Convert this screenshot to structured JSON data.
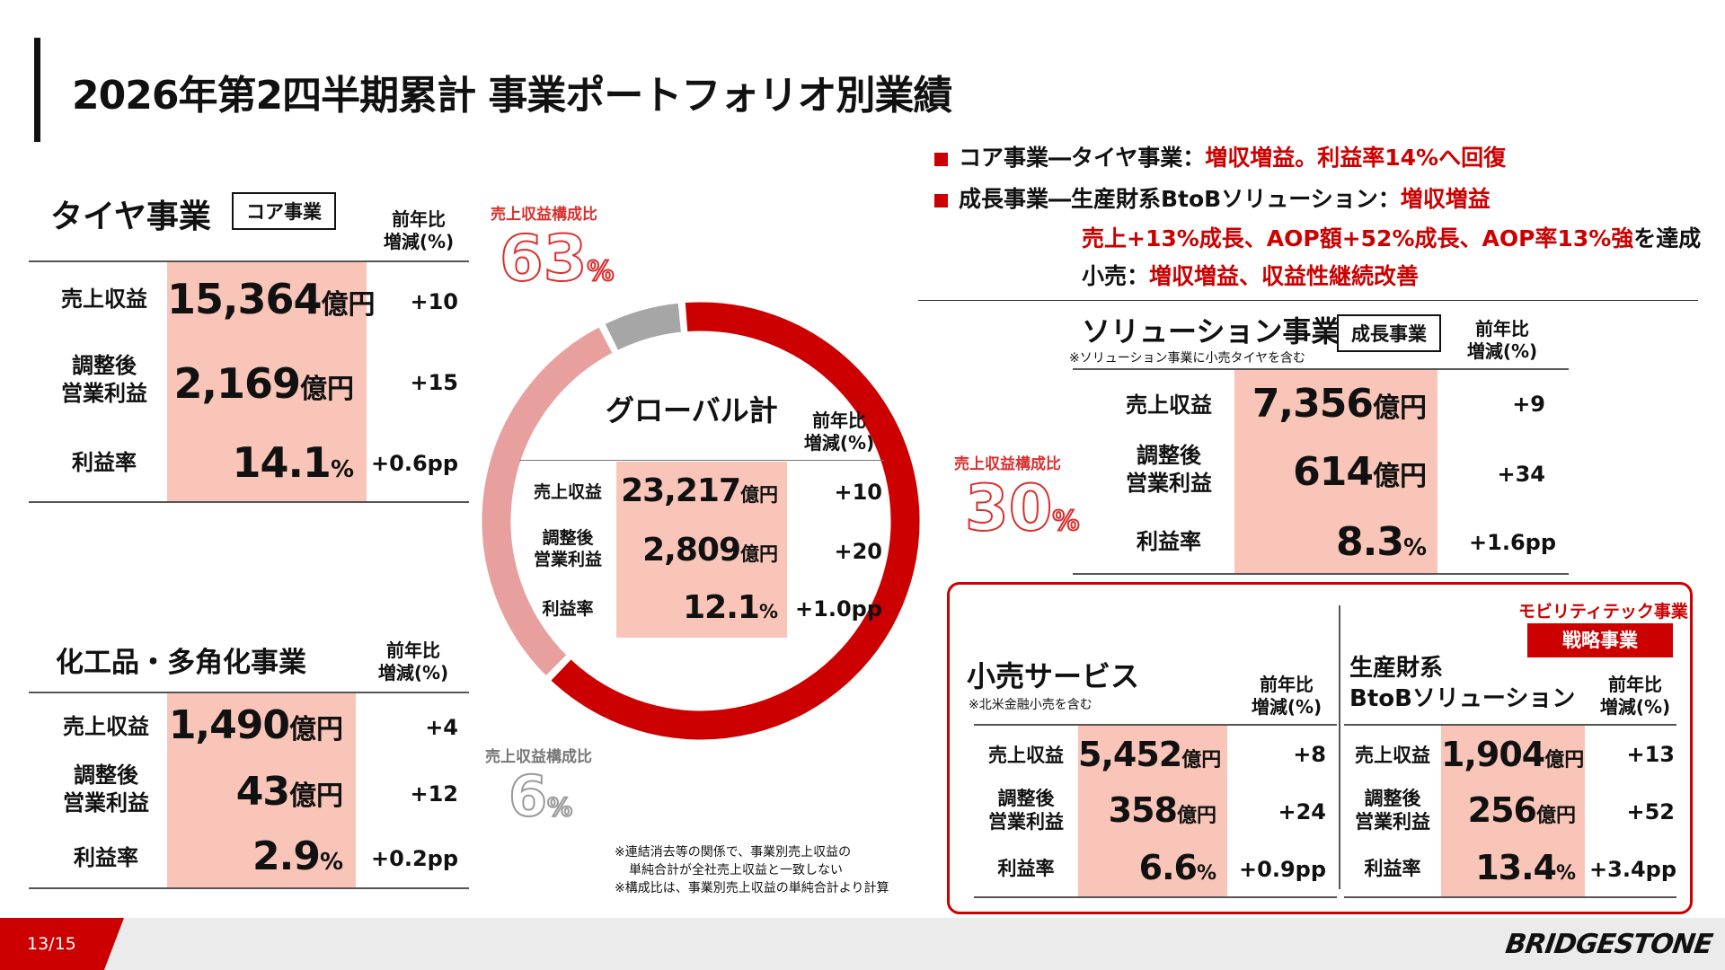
{
  "title": "2026年第2四半期累計 事業ポートフォリオ別業績",
  "bullets": [
    {
      "prefix": "コア事業―タイヤ事業：",
      "highlight": "増収増益。利益率14%へ回復"
    },
    {
      "prefix": "成長事業―生産財系BtoBソリューション：",
      "highlight": "増収増益"
    }
  ],
  "bullet_detail1_highlight": "売上+13%成長、AOP額+52%成長、AOP率13%強",
  "bullet_detail1_suffix": "を達成",
  "bullet_detail2_prefix": "小売：",
  "bullet_detail2_highlight": "増収増益、収益性継続改善",
  "yoy_label_1": "前年比",
  "yoy_label_2": "増減(%)",
  "row_labels": {
    "revenue": "売上収益",
    "aop_1": "調整後",
    "aop_2": "営業利益",
    "margin": "利益率"
  },
  "units": {
    "oku": "億円",
    "pct": "%"
  },
  "tire": {
    "title": "タイヤ事業",
    "badge": "コア事業",
    "revenue": "15,364",
    "revenue_chg": "+10",
    "aop": "2,169",
    "aop_chg": "+15",
    "margin": "14.1",
    "margin_chg": "+0.6pp"
  },
  "chem": {
    "title": "化工品・多角化事業",
    "revenue": "1,490",
    "revenue_chg": "+4",
    "aop": "43",
    "aop_chg": "+12",
    "margin": "2.9",
    "margin_chg": "+0.2pp"
  },
  "global": {
    "title": "グローバル計",
    "revenue": "23,217",
    "revenue_chg": "+10",
    "aop": "2,809",
    "aop_chg": "+20",
    "margin": "12.1",
    "margin_chg": "+1.0pp"
  },
  "solution": {
    "title": "ソリューション事業",
    "badge": "成長事業",
    "note": "※ソリューション事業に小売タイヤを含む",
    "revenue": "7,356",
    "revenue_chg": "+9",
    "aop": "614",
    "aop_chg": "+34",
    "margin": "8.3",
    "margin_chg": "+1.6pp"
  },
  "mobility_label": "モビリティテック事業",
  "strategic_badge": "戦略事業",
  "retail": {
    "title": "小売サービス",
    "note": "※北米金融小売を含む",
    "revenue": "5,452",
    "revenue_chg": "+8",
    "aop": "358",
    "aop_chg": "+24",
    "margin": "6.6",
    "margin_chg": "+0.9pp"
  },
  "btob": {
    "title_1": "生産財系",
    "title_2": "BtoBソリューション",
    "revenue": "1,904",
    "revenue_chg": "+13",
    "aop": "256",
    "aop_chg": "+52",
    "margin": "13.4",
    "margin_chg": "+3.4pp"
  },
  "composition": {
    "label": "売上収益構成比",
    "tire_value": "63",
    "solution_value": "30",
    "chem_value": "6",
    "unit": "%",
    "shares": [
      63,
      30,
      6
    ]
  },
  "ring_colors": {
    "tire": "#cc0000",
    "solution": "#e8a09f",
    "chem": "#a6a6a6"
  },
  "notes": [
    "※連結消去等の関係で、事業別売上収益の",
    "単純合計が全社売上収益と一致しない",
    "※構成比は、事業別売上収益の単純合計より計算"
  ],
  "page_number": "13/15",
  "brand": "BRIDGESTONE"
}
